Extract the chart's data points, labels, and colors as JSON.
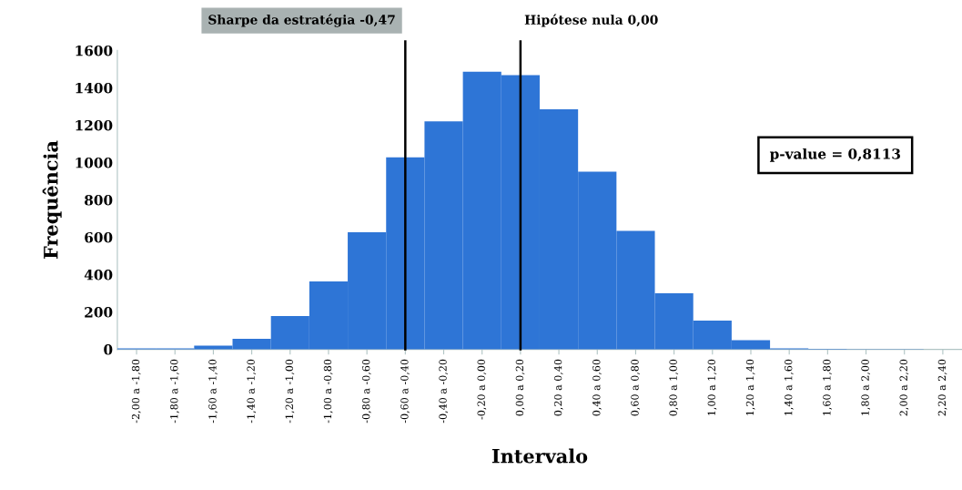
{
  "chart_data": {
    "type": "bar",
    "xlabel": "Intervalo",
    "ylabel": "Frequência",
    "categories": [
      "-2,00 a -1,80",
      "-1,80 a -1,60",
      "-1,60 a -1,40",
      "-1,40 a -1,20",
      "-1,20 a -1,00",
      "-1,00 a -0,80",
      "-0,80 a -0,60",
      "-0,60 a -0,40",
      "-0,40 a -0,20",
      "-0,20 a 0,00",
      "0,00 a 0,20",
      "0,20 a 0,40",
      "0,40 a 0,60",
      "0,60 a 0,80",
      "0,80 a 1,00",
      "1,00 a 1,20",
      "1,20 a 1,40",
      "1,40 a 1,60",
      "1,60 a 1,80",
      "1,80 a 2,00",
      "2,00 a 2,20",
      "2,20 a 2,40"
    ],
    "values": [
      5,
      5,
      20,
      57,
      178,
      364,
      627,
      1028,
      1220,
      1486,
      1468,
      1285,
      951,
      634,
      300,
      154,
      49,
      5,
      3,
      2,
      2,
      1
    ],
    "color": "#2e75d6",
    "ylim": [
      0,
      1600
    ],
    "yticks": [
      0,
      200,
      400,
      600,
      800,
      1000,
      1200,
      1400,
      1600
    ],
    "ref_lines": [
      {
        "axis": "x",
        "value": "-0,60 a -0,40",
        "label": "Sharpe da estratégia -0,47",
        "color": "#000000"
      },
      {
        "axis": "x",
        "value": "0,00 a 0,20",
        "label": "Hipótese nula 0,00",
        "color": "#000000"
      }
    ],
    "annotations": [
      "p-value = 0,8113"
    ],
    "grid": false,
    "legend": false
  }
}
